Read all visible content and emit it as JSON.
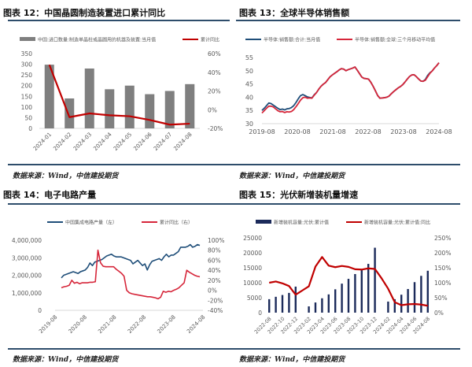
{
  "panels": {
    "p12": {
      "title": "图表 12：中国晶圆制造装置进口累计同比",
      "legend": [
        "中国:进口数量:制造单晶柱或晶圆用的机器及装置:当月值",
        "累计同比"
      ],
      "source": "数据来源：Wind，中信建投期货"
    },
    "p13": {
      "title": "图表 13：全球半导体销售额",
      "legend": [
        "半导体:销售额:合计:当月值",
        "半导体:销售额:全球:三个月移动平均值"
      ],
      "source": "数据来源：Wind，中信建投期货"
    },
    "p14": {
      "title": "图表 14：电子电路产量",
      "legend": [
        "中国集成电路产量（左）",
        "累计同比（右）"
      ],
      "source": "数据来源：Wind，中信建投期货"
    },
    "p15": {
      "title": "图表 15：光伏新增装机量增速",
      "legend": [
        "新增装机容量:光伏:累计值",
        "新增装机容量:光伏:累计值:同比"
      ],
      "source": "数据来源：Wind，中信建投期货"
    }
  },
  "colors": {
    "bar_gray": "#7f7f7f",
    "line_red": "#c00000",
    "line_blue": "#1f4e79",
    "line_crimson": "#d6263a",
    "bar_navy": "#1b2a5a",
    "rule": "#2e4d6b",
    "axis_text": "#595959"
  },
  "chart_data": [
    {
      "id": "chart12",
      "type": "bar",
      "title": "中国晶圆制造装置进口累计同比",
      "categories": [
        "2024-01",
        "2024-02",
        "2024-03",
        "2024-04",
        "2024-05",
        "2024-06",
        "2024-07",
        "2024-08"
      ],
      "series": [
        {
          "name": "中国:进口数量:制造单晶柱或晶圆用的机器及装置:当月值",
          "type": "bar",
          "axis": "left",
          "values": [
            298,
            140,
            280,
            183,
            200,
            160,
            175,
            207
          ]
        },
        {
          "name": "累计同比",
          "type": "line",
          "axis": "right",
          "values": [
            48,
            -8,
            -4,
            -6,
            -7,
            -11,
            -16,
            -15
          ]
        }
      ],
      "ylim_left": [
        0,
        350
      ],
      "yticks_left": [
        "0",
        "50",
        "100",
        "150",
        "200",
        "250",
        "300",
        "350"
      ],
      "ylim_right": [
        -20,
        60
      ],
      "yticks_right": [
        "-20%",
        "0%",
        "20%",
        "40%",
        "60%"
      ],
      "legend_position": "top"
    },
    {
      "id": "chart13",
      "type": "line",
      "title": "全球半导体销售额",
      "xticks": [
        "2019-08",
        "2020-08",
        "2021-08",
        "2022-08",
        "2023-08",
        "2024-08"
      ],
      "series": [
        {
          "name": "半导体:销售额:合计:当月值",
          "values": [
            35.0,
            35.8,
            36.8,
            37.8,
            37.6,
            37.0,
            36.4,
            35.8,
            35.3,
            35.5,
            35.2,
            35.6,
            35.7,
            36.1,
            36.8,
            38.0,
            39.4,
            40.6,
            41.0,
            40.6,
            40.1,
            39.9,
            39.7,
            40.9,
            41.7,
            43.0,
            44.1,
            44.9,
            45.5,
            46.6,
            47.7,
            48.4,
            49.0,
            49.6,
            50.3,
            50.8,
            50.6,
            50.0,
            50.4,
            50.7,
            51.0,
            51.4,
            50.2,
            48.9,
            47.6,
            47.1,
            47.0,
            46.8,
            45.6,
            44.1,
            42.4,
            40.6,
            39.6,
            39.7,
            39.8,
            40.0,
            40.4,
            41.3,
            42.1,
            42.8,
            43.5,
            44.0,
            44.7,
            45.7,
            46.8,
            47.8,
            48.4,
            48.5,
            47.8,
            46.9,
            46.1,
            46.0,
            46.7,
            48.2,
            49.2,
            49.9,
            51.0,
            51.9,
            53.0
          ]
        },
        {
          "name": "半导体:销售额:全球:三个月移动平均值",
          "values": [
            34.0,
            34.9,
            35.8,
            36.6,
            36.6,
            36.3,
            35.6,
            34.9,
            34.5,
            34.6,
            34.2,
            34.5,
            34.4,
            34.6,
            35.3,
            36.4,
            37.6,
            38.9,
            39.8,
            40.0,
            39.6,
            39.7,
            39.6,
            40.7,
            41.7,
            43.0,
            44.1,
            44.9,
            45.5,
            46.6,
            47.7,
            48.4,
            49.0,
            49.6,
            50.3,
            50.8,
            50.6,
            50.0,
            50.4,
            50.7,
            51.0,
            51.4,
            50.2,
            48.9,
            47.6,
            47.1,
            47.0,
            46.8,
            45.6,
            44.1,
            42.4,
            40.6,
            39.6,
            39.7,
            39.8,
            40.0,
            40.4,
            41.3,
            42.1,
            42.8,
            43.5,
            44.0,
            44.7,
            45.7,
            46.8,
            47.8,
            48.4,
            48.5,
            47.8,
            46.9,
            46.1,
            46.0,
            46.4,
            47.7,
            49.0,
            49.9,
            51.0,
            51.9,
            53.0
          ]
        }
      ],
      "ylim": [
        30,
        55
      ],
      "yticks": [
        "30",
        "35",
        "40",
        "45",
        "50",
        "55"
      ],
      "legend_position": "top"
    },
    {
      "id": "chart14",
      "type": "line",
      "title": "电子电路产量",
      "xticks": [
        "2019-08",
        "2020-08",
        "2021-08",
        "2022-08",
        "2023-08",
        "2024-08"
      ],
      "series": [
        {
          "name": "中国集成电路产量（左）",
          "axis": "left",
          "values": [
            1850000,
            2000000,
            2050000,
            2100000,
            2150000,
            2200000,
            2150000,
            2100000,
            2200000,
            2250000,
            2300000,
            2450000,
            2700000,
            2550000,
            2750000,
            2800000,
            2850000,
            2900000,
            3000000,
            3100000,
            3150000,
            3200000,
            3100000,
            3050000,
            3050000,
            3050000,
            3000000,
            2950000,
            2900000,
            2850000,
            2650000,
            2750000,
            2850000,
            2700000,
            2550000,
            2650000,
            2300000,
            2600000,
            2800000,
            2850000,
            2900000,
            2950000,
            2850000,
            3050000,
            3200000,
            3050000,
            3150000,
            3150000,
            3250000,
            3350000,
            3600000,
            3600000,
            3600000,
            3650000,
            3750000,
            3600000,
            3650000,
            3750000,
            3700000
          ]
        },
        {
          "name": "累计同比（右）",
          "axis": "right",
          "values": [
            5,
            7,
            8,
            10,
            20,
            14,
            16,
            13,
            15,
            15,
            15,
            16,
            16,
            17,
            80,
            55,
            48,
            47,
            47,
            47,
            47,
            42,
            38,
            34,
            28,
            0,
            -5,
            -7,
            -8,
            -9,
            -10,
            -11,
            -12,
            -13,
            -13,
            -14,
            -15,
            -17,
            -14,
            -2,
            -4,
            -2,
            -3,
            0,
            2,
            5,
            10,
            15,
            40,
            36,
            33,
            30,
            28,
            27
          ]
        }
      ],
      "ylim_left": [
        0,
        4000000
      ],
      "yticks_left": [
        "0",
        "1,000,000",
        "2,000,000",
        "3,000,000",
        "4,000,000"
      ],
      "ylim_right": [
        -40,
        100
      ],
      "yticks_right": [
        "-40%",
        "-20%",
        "0%",
        "20%",
        "40%",
        "60%",
        "80%",
        "100%"
      ],
      "legend_position": "top"
    },
    {
      "id": "chart15",
      "type": "bar",
      "title": "光伏新增装机量增速",
      "categories": [
        "2022-08",
        "2022-09",
        "2022-10",
        "2022-11",
        "2022-12",
        "2023-01",
        "2023-02",
        "2023-03",
        "2023-04",
        "2023-05",
        "2023-06",
        "2023-07",
        "2023-08",
        "2023-09",
        "2023-10",
        "2023-11",
        "2023-12",
        "2024-01",
        "2024-02",
        "2024-03",
        "2024-04",
        "2024-05",
        "2024-06",
        "2024-07",
        "2024-08"
      ],
      "xticks": [
        "2022-08",
        "2022-10",
        "2022-12",
        "2023-02",
        "2023-04",
        "2023-06",
        "2023-08",
        "2023-10",
        "2023-12",
        "2024-02",
        "2024-04",
        "2024-06",
        "2024-08"
      ],
      "series": [
        {
          "name": "新增装机容量:光伏:累计值",
          "type": "bar",
          "axis": "left",
          "values": [
            4500,
            5300,
            5900,
            6600,
            8700,
            null,
            2100,
            3400,
            4800,
            6100,
            7800,
            9700,
            11300,
            12900,
            14200,
            16300,
            21700,
            null,
            3700,
            4500,
            6000,
            7900,
            10200,
            12300,
            14000
          ]
        },
        {
          "name": "新增装机容量:光伏:累计值:同比",
          "type": "line",
          "axis": "right",
          "values": [
            100,
            104,
            98,
            89,
            60,
            74,
            88,
            154,
            186,
            157,
            152,
            156,
            153,
            145,
            144,
            148,
            146,
            115,
            80,
            35,
            25,
            28,
            29,
            27,
            23
          ]
        }
      ],
      "ylim_left": [
        0,
        25000
      ],
      "yticks_left": [
        "0",
        "5000",
        "10000",
        "15000",
        "20000",
        "25000"
      ],
      "ylim_right": [
        0,
        250
      ],
      "yticks_right": [
        "0%",
        "50%",
        "100%",
        "150%",
        "200%",
        "250%"
      ],
      "legend_position": "top"
    }
  ]
}
